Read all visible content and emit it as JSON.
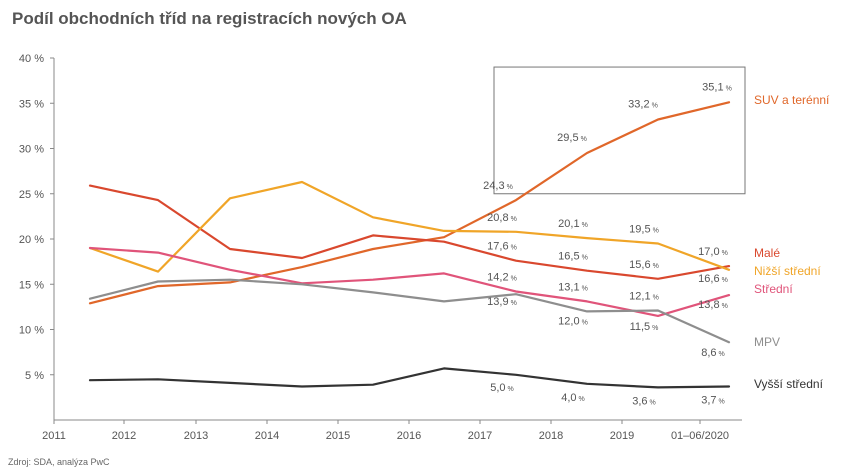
{
  "title": "Podíl obchodních tříd na registracích nových OA",
  "source": "Zdroj: SDA, analýza PwC",
  "chart_data": {
    "type": "line",
    "title": "Podíl obchodních tříd na registracích nových OA",
    "xlabel": "",
    "ylabel": "",
    "ylim": [
      0,
      40
    ],
    "yticks": [
      "40 %",
      "35 %",
      "30 %",
      "25 %",
      "20 %",
      "15 %",
      "10 %",
      "5 %"
    ],
    "xticks": [
      "2011",
      "2012",
      "2013",
      "2014",
      "2015",
      "2016",
      "2017",
      "2018",
      "2019",
      "01–06/2020"
    ],
    "x": [
      "2011",
      "2012",
      "2013",
      "2014",
      "2015",
      "2016",
      "2017",
      "2018",
      "2019",
      "01–06/2020"
    ],
    "percent_suffix": "%",
    "grid": false,
    "legend": "inline-right",
    "highlight_box": {
      "from": "2017",
      "to": "01–06/2020",
      "ymin": 25,
      "ymax": 39
    }
  },
  "series": [
    {
      "name": "SUV a terénní",
      "color": "#e0672a",
      "values": [
        12.9,
        14.8,
        15.2,
        16.9,
        18.9,
        20.2,
        24.3,
        29.5,
        33.2,
        35.1
      ],
      "labels": [
        null,
        null,
        null,
        null,
        null,
        null,
        "24,3",
        "29,5",
        "33,2",
        "35,1"
      ]
    },
    {
      "name": "Malé",
      "color": "#d9482e",
      "values": [
        25.9,
        24.3,
        18.9,
        17.9,
        20.4,
        19.7,
        17.6,
        16.5,
        15.6,
        17.0
      ],
      "labels": [
        null,
        null,
        null,
        null,
        null,
        null,
        "17,6",
        "16,5",
        "15,6",
        "17,0"
      ]
    },
    {
      "name": "Nižší střední",
      "color": "#f0a528",
      "values": [
        19.0,
        16.4,
        24.5,
        26.3,
        22.4,
        20.9,
        20.8,
        20.1,
        19.5,
        16.6
      ],
      "labels": [
        null,
        null,
        null,
        null,
        null,
        null,
        "20,8",
        "20,1",
        "19,5",
        "16,6"
      ]
    },
    {
      "name": "Střední",
      "color": "#e0547a",
      "values": [
        19.0,
        18.5,
        16.6,
        15.1,
        15.5,
        16.2,
        14.2,
        13.1,
        11.5,
        13.8
      ],
      "labels": [
        null,
        null,
        null,
        null,
        null,
        null,
        "14,2",
        "13,1",
        "11,5",
        "13,8"
      ]
    },
    {
      "name": "MPV",
      "color": "#8e8e8e",
      "values": [
        13.4,
        15.3,
        15.5,
        15.0,
        14.1,
        13.1,
        13.9,
        12.0,
        12.1,
        8.6
      ],
      "labels": [
        null,
        null,
        null,
        null,
        null,
        null,
        "13,9",
        "12,0",
        "12,1",
        "8,6"
      ]
    },
    {
      "name": "Vyšší střední",
      "color": "#333333",
      "values": [
        4.4,
        4.5,
        4.1,
        3.7,
        3.9,
        5.7,
        5.0,
        4.0,
        3.6,
        3.7
      ],
      "labels": [
        null,
        null,
        null,
        null,
        null,
        null,
        "5,0",
        "4,0",
        "3,6",
        "3,7"
      ]
    }
  ]
}
